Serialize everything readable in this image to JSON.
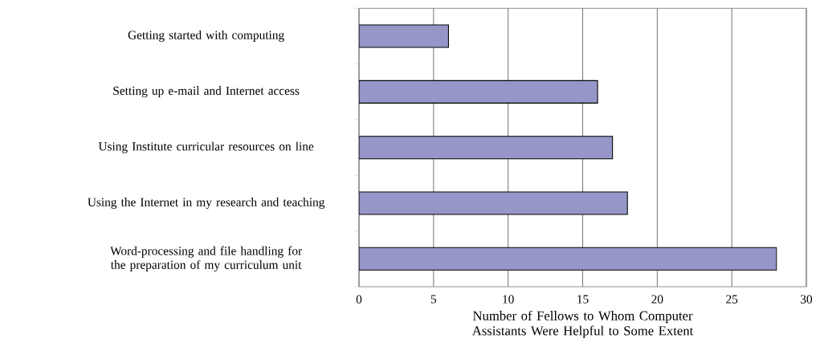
{
  "chart_data": {
    "type": "bar",
    "orientation": "horizontal",
    "categories": [
      "Getting started with computing",
      "Setting up e-mail and Internet access",
      "Using Institute curricular resources on line",
      "Using the Internet in my research and teaching",
      "Word-processing and file handling for the preparation of my curriculum unit"
    ],
    "values": [
      6,
      16,
      17,
      18,
      28
    ],
    "color": "#9696c8",
    "xlabel": "Number of Fellows to Whom Computer Assistants Were Helpful to Some Extent",
    "xlim": [
      0,
      30
    ],
    "xticks": [
      0,
      5,
      10,
      15,
      20,
      25,
      30
    ],
    "grid": "x"
  }
}
